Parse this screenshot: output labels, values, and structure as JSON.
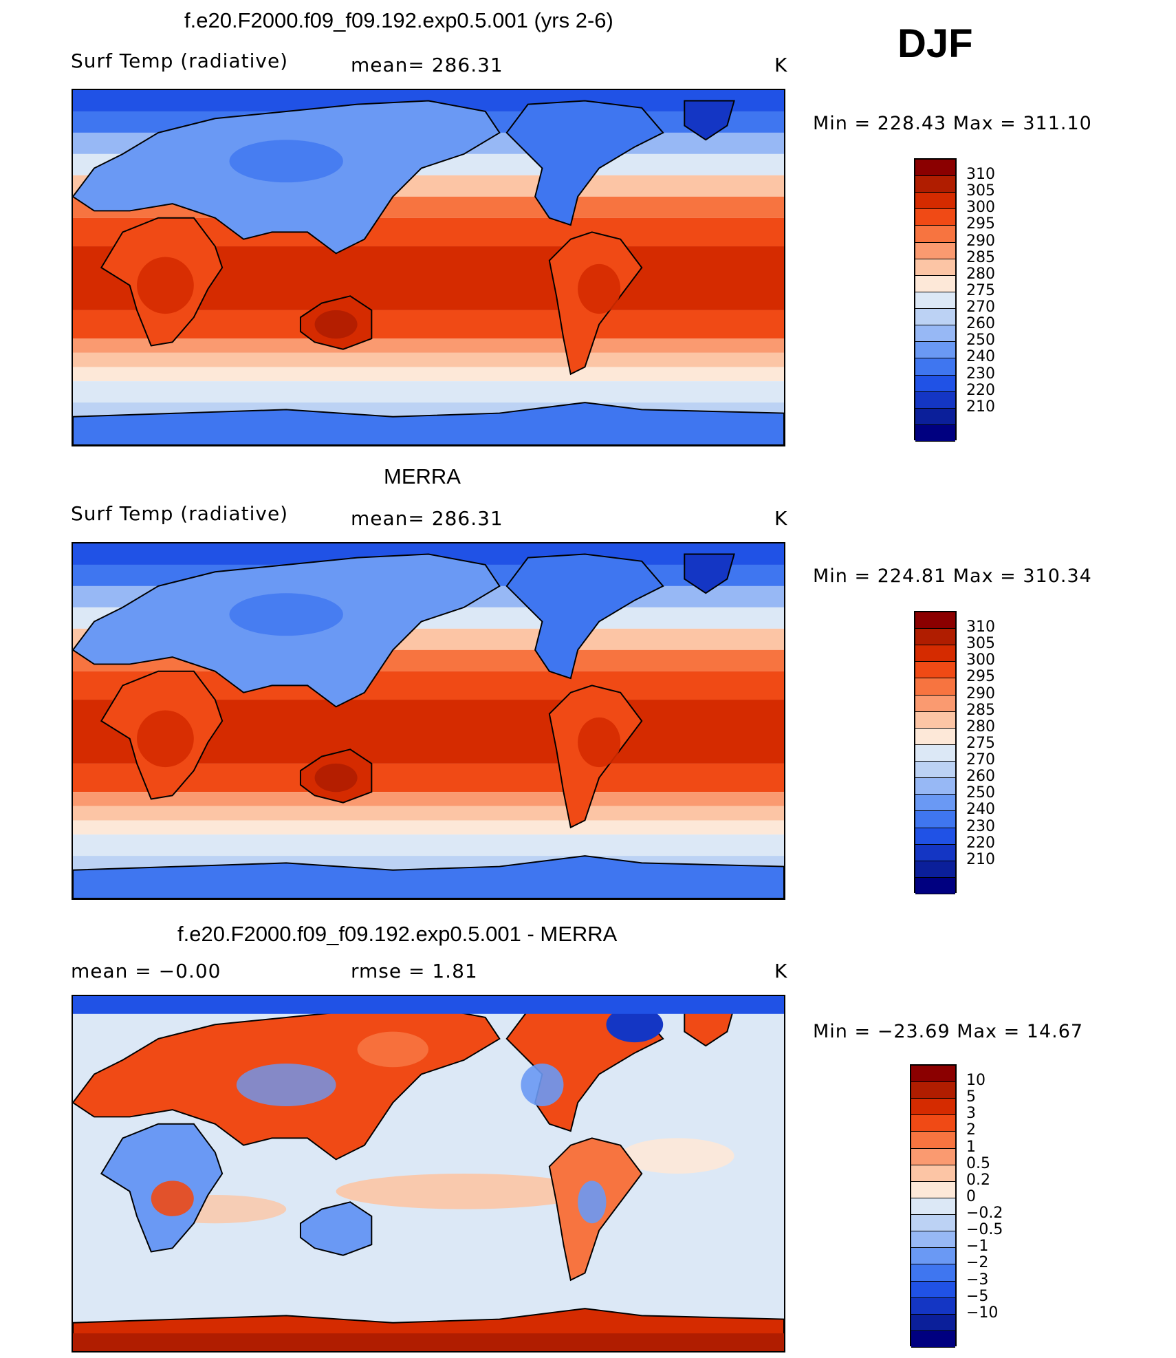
{
  "season": "DJF",
  "units": "K",
  "panels": [
    {
      "title": "f.e20.F2000.f09_f09.192.exp0.5.001 (yrs 2-6)",
      "variable": "Surf Temp (radiative)",
      "stat1": "mean=  286.31",
      "units": "K",
      "min_max": "Min  =  228.43  Max  =  311.10",
      "colorbar": {
        "levels": [
          "310",
          "305",
          "300",
          "295",
          "290",
          "285",
          "280",
          "275",
          "270",
          "260",
          "250",
          "240",
          "230",
          "220",
          "210"
        ],
        "colors": [
          "#8b0000",
          "#b01d00",
          "#d52b00",
          "#f04a15",
          "#f77440",
          "#fa9a70",
          "#fcc5a5",
          "#fde8d8",
          "#dce8f6",
          "#bcd2f4",
          "#97b8f5",
          "#6a99f4",
          "#3f76f0",
          "#2052e6",
          "#1436c4",
          "#0b1f9a",
          "#000080"
        ]
      },
      "style": "model"
    },
    {
      "title": "MERRA",
      "variable": "Surf Temp (radiative)",
      "stat1": "mean=  286.31",
      "units": "K",
      "min_max": "Min  =  224.81  Max  =  310.34",
      "colorbar": {
        "levels": [
          "310",
          "305",
          "300",
          "295",
          "290",
          "285",
          "280",
          "275",
          "270",
          "260",
          "250",
          "240",
          "230",
          "220",
          "210"
        ],
        "colors": [
          "#8b0000",
          "#b01d00",
          "#d52b00",
          "#f04a15",
          "#f77440",
          "#fa9a70",
          "#fcc5a5",
          "#fde8d8",
          "#dce8f6",
          "#bcd2f4",
          "#97b8f5",
          "#6a99f4",
          "#3f76f0",
          "#2052e6",
          "#1436c4",
          "#0b1f9a",
          "#000080"
        ]
      },
      "style": "obs"
    },
    {
      "title": "f.e20.F2000.f09_f09.192.exp0.5.001 - MERRA",
      "variable": "mean  =    −0.00",
      "stat1": "rmse  =     1.81",
      "units": "K",
      "min_max": "Min  =  −23.69  Max  =    14.67",
      "colorbar": {
        "levels": [
          "10",
          "5",
          "3",
          "2",
          "1",
          "0.5",
          "0.2",
          "0",
          "−0.2",
          "−0.5",
          "−1",
          "−2",
          "−3",
          "−5",
          "−10"
        ],
        "colors": [
          "#8b0000",
          "#b01d00",
          "#d52b00",
          "#f04a15",
          "#f77440",
          "#fa9a70",
          "#fcc5a5",
          "#fde8d8",
          "#dce8f6",
          "#bcd2f4",
          "#97b8f5",
          "#6a99f4",
          "#3f76f0",
          "#2052e6",
          "#1436c4",
          "#0b1f9a",
          "#000080"
        ]
      },
      "style": "diff"
    }
  ]
}
